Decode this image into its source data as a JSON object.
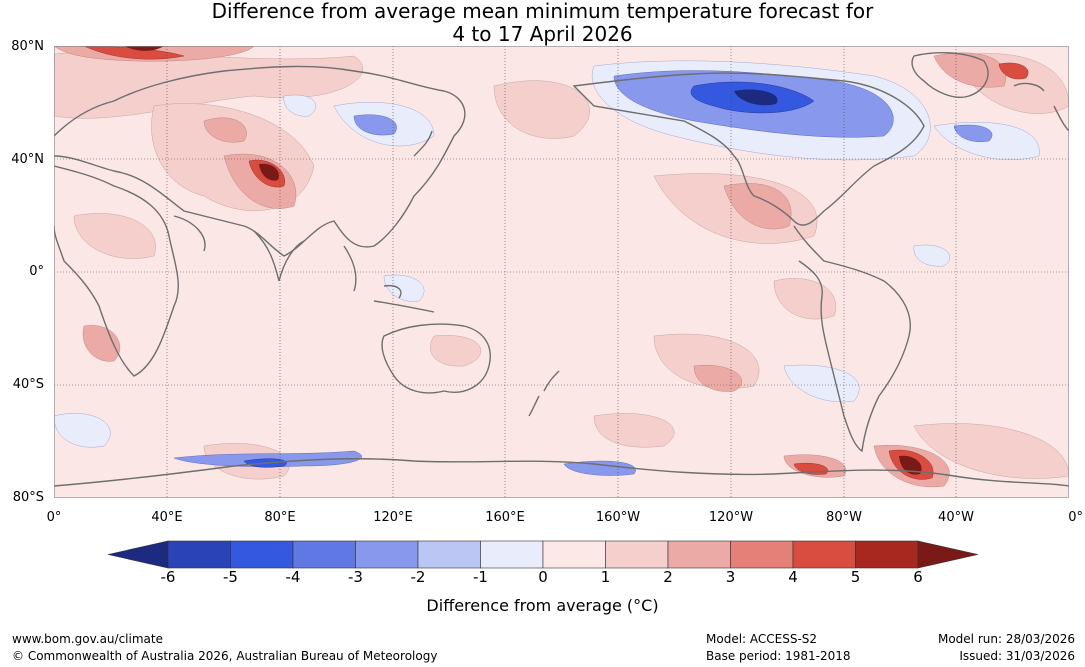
{
  "title": {
    "line1": "Difference from average mean minimum temperature forecast for",
    "line2": "4 to 17 April 2026"
  },
  "map": {
    "lat_labels": [
      "80°N",
      "40°N",
      "0°",
      "40°S",
      "80°S"
    ],
    "lon_labels": [
      "0°",
      "40°E",
      "80°E",
      "120°E",
      "160°E",
      "160°W",
      "120°W",
      "80°W",
      "40°W",
      "0°"
    ]
  },
  "colorbar": {
    "ticks": [
      "-6",
      "-5",
      "-4",
      "-3",
      "-2",
      "-1",
      "0",
      "1",
      "2",
      "3",
      "4",
      "5",
      "6"
    ],
    "colors": [
      "#1c2a80",
      "#2a44b8",
      "#3558e0",
      "#5f78e4",
      "#8898ec",
      "#bcc6f4",
      "#e8ecfb",
      "#fce8e6",
      "#f4cfcb",
      "#ecaaa6",
      "#e48078",
      "#d94c40",
      "#a8271f",
      "#7a1a16"
    ],
    "label": "Difference from average (°C)"
  },
  "footer": {
    "url": "www.bom.gov.au/climate",
    "copyright": "© Commonwealth of Australia 2026, Australian Bureau of Meteorology",
    "model": "Model: ACCESS-S2",
    "base_period": "Base period: 1981-2018",
    "model_run": "Model run: 28/03/2026",
    "issued": "Issued: 31/03/2026"
  }
}
